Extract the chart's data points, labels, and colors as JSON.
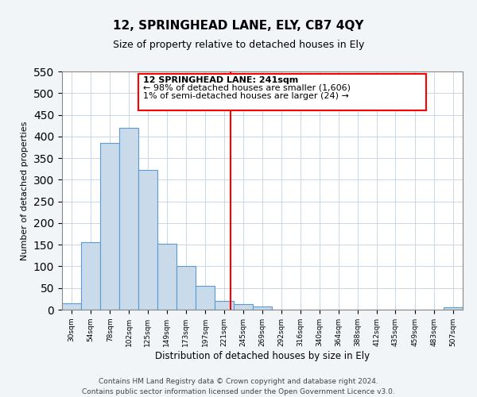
{
  "title": "12, SPRINGHEAD LANE, ELY, CB7 4QY",
  "subtitle": "Size of property relative to detached houses in Ely",
  "xlabel": "Distribution of detached houses by size in Ely",
  "ylabel": "Number of detached properties",
  "bin_labels": [
    "30sqm",
    "54sqm",
    "78sqm",
    "102sqm",
    "125sqm",
    "149sqm",
    "173sqm",
    "197sqm",
    "221sqm",
    "245sqm",
    "269sqm",
    "292sqm",
    "316sqm",
    "340sqm",
    "364sqm",
    "388sqm",
    "412sqm",
    "435sqm",
    "459sqm",
    "483sqm",
    "507sqm"
  ],
  "bin_edges": [
    30,
    54,
    78,
    102,
    125,
    149,
    173,
    197,
    221,
    245,
    269,
    292,
    316,
    340,
    364,
    388,
    412,
    435,
    459,
    483,
    507
  ],
  "bar_heights": [
    15,
    155,
    385,
    420,
    322,
    153,
    100,
    55,
    20,
    13,
    8,
    0,
    0,
    0,
    0,
    0,
    0,
    0,
    0,
    0,
    5
  ],
  "bar_color": "#c9daea",
  "bar_edge_color": "#5b9bd5",
  "vline_x": 241,
  "ylim": [
    0,
    550
  ],
  "yticks": [
    0,
    50,
    100,
    150,
    200,
    250,
    300,
    350,
    400,
    450,
    500,
    550
  ],
  "annotation_title": "12 SPRINGHEAD LANE: 241sqm",
  "annotation_line1": "← 98% of detached houses are smaller (1,606)",
  "annotation_line2": "1% of semi-detached houses are larger (24) →",
  "footer1": "Contains HM Land Registry data © Crown copyright and database right 2024.",
  "footer2": "Contains public sector information licensed under the Open Government Licence v3.0.",
  "background_color": "#f2f5f8",
  "plot_bg_color": "#ffffff",
  "grid_color": "#c8d8e8"
}
